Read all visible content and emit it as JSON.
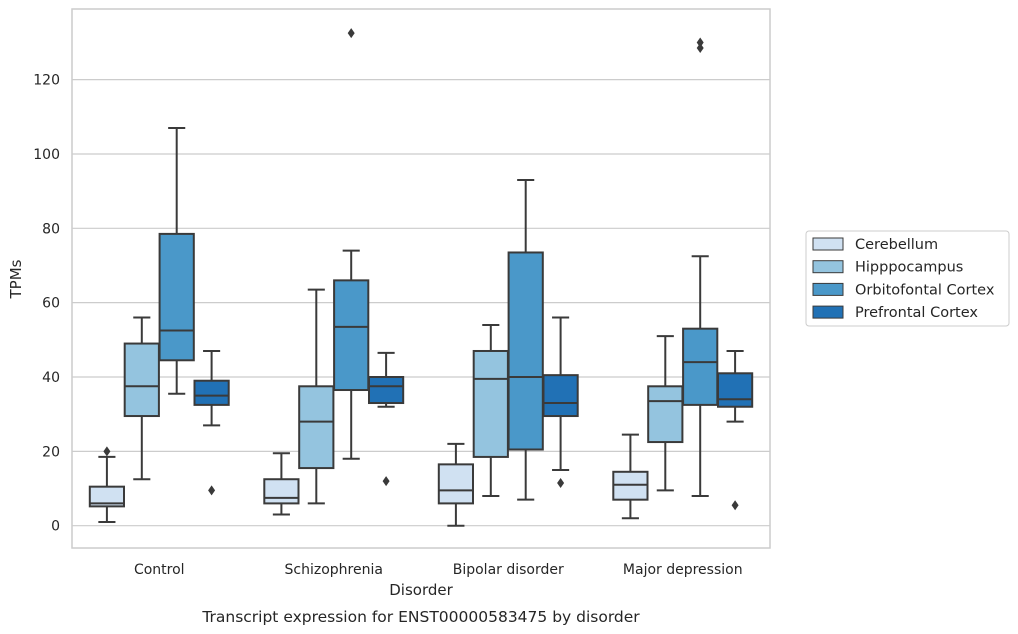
{
  "chart_data": {
    "type": "box",
    "title": "",
    "caption": "Transcript expression for ENST00000583475 by disorder",
    "xlabel": "Disorder",
    "ylabel": "TPMs",
    "ylim": [
      -6,
      139
    ],
    "yticks": [
      0,
      20,
      40,
      60,
      80,
      100,
      120
    ],
    "grid": "horizontal",
    "legend_position": "right",
    "categories": [
      "Control",
      "Schizophrenia",
      "Bipolar disorder",
      "Major depression"
    ],
    "series": [
      {
        "name": "Cerebellum",
        "color": "#d0e1f2",
        "boxes": [
          {
            "whislo": 1,
            "q1": 5.2,
            "med": 6,
            "q3": 10.5,
            "whishi": 18.5,
            "fliers": [
              20
            ]
          },
          {
            "whislo": 3,
            "q1": 6,
            "med": 7.5,
            "q3": 12.5,
            "whishi": 19.5,
            "fliers": []
          },
          {
            "whislo": 0,
            "q1": 6,
            "med": 9.5,
            "q3": 16.5,
            "whishi": 22,
            "fliers": []
          },
          {
            "whislo": 2,
            "q1": 7,
            "med": 11,
            "q3": 14.5,
            "whishi": 24.5,
            "fliers": []
          }
        ]
      },
      {
        "name": "Hipppocampus",
        "color": "#94c4df",
        "boxes": [
          {
            "whislo": 12.5,
            "q1": 29.5,
            "med": 37.5,
            "q3": 49,
            "whishi": 56,
            "fliers": []
          },
          {
            "whislo": 6,
            "q1": 15.5,
            "med": 28,
            "q3": 37.5,
            "whishi": 63.5,
            "fliers": []
          },
          {
            "whislo": 8,
            "q1": 18.5,
            "med": 39.5,
            "q3": 47,
            "whishi": 54,
            "fliers": []
          },
          {
            "whislo": 9.5,
            "q1": 22.5,
            "med": 33.5,
            "q3": 37.5,
            "whishi": 51,
            "fliers": []
          }
        ]
      },
      {
        "name": "Orbitofontal Cortex",
        "color": "#4a98c9",
        "boxes": [
          {
            "whislo": 35.5,
            "q1": 44.5,
            "med": 52.5,
            "q3": 78.5,
            "whishi": 107,
            "fliers": []
          },
          {
            "whislo": 18,
            "q1": 36.5,
            "med": 53.5,
            "q3": 66,
            "whishi": 74,
            "fliers": [
              132.5
            ]
          },
          {
            "whislo": 7,
            "q1": 20.5,
            "med": 40,
            "q3": 73.5,
            "whishi": 93,
            "fliers": []
          },
          {
            "whislo": 8,
            "q1": 32.5,
            "med": 44,
            "q3": 53,
            "whishi": 72.5,
            "fliers": [
              128.5,
              130
            ]
          }
        ]
      },
      {
        "name": "Prefrontal Cortex",
        "color": "#2171b5",
        "boxes": [
          {
            "whislo": 27,
            "q1": 32.5,
            "med": 35,
            "q3": 39,
            "whishi": 47,
            "fliers": [
              9.5
            ]
          },
          {
            "whislo": 32,
            "q1": 33,
            "med": 37.5,
            "q3": 40,
            "whishi": 46.5,
            "fliers": [
              12
            ]
          },
          {
            "whislo": 15,
            "q1": 29.5,
            "med": 33,
            "q3": 40.5,
            "whishi": 56,
            "fliers": [
              11.5
            ]
          },
          {
            "whislo": 28,
            "q1": 32,
            "med": 34,
            "q3": 41,
            "whishi": 47,
            "fliers": [
              5.5
            ]
          }
        ]
      }
    ]
  }
}
